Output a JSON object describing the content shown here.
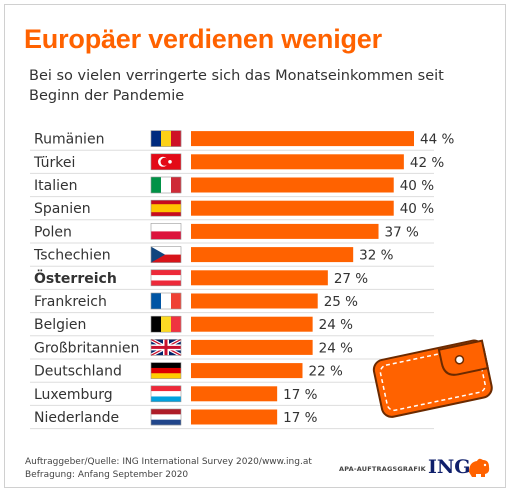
{
  "title": "Europäer verdienen weniger",
  "subtitle": "Bei so vielen verringerte sich das Monatseinkommen seit Beginn der Pandemie",
  "source": "Auftraggeber/Quelle: ING International Survey 2020/www.ing.at",
  "survey": "Befragung: Anfang September 2020",
  "credit": "APA-AUFTRAGSGRAFIK",
  "logo": "ING",
  "colors": {
    "accent": "#ff6200",
    "bar": "#ff6200",
    "text": "#333333",
    "rule": "#dddddd",
    "logo": "#0f1f6b"
  },
  "icons": [
    "flag-icon",
    "wallet-icon",
    "lion-icon"
  ],
  "chart_data": {
    "type": "bar",
    "orientation": "horizontal",
    "unit": "%",
    "categories": [
      "Rumänien",
      "Türkei",
      "Italien",
      "Spanien",
      "Polen",
      "Tschechien",
      "Österreich",
      "Frankreich",
      "Belgien",
      "Großbritannien",
      "Deutschland",
      "Luxemburg",
      "Niederlande"
    ],
    "values": [
      44,
      42,
      40,
      40,
      37,
      32,
      27,
      25,
      24,
      24,
      22,
      17,
      17
    ],
    "labels": [
      "44 %",
      "42 %",
      "40 %",
      "40 %",
      "37 %",
      "32 %",
      "27 %",
      "25 %",
      "24 %",
      "24 %",
      "22 %",
      "17 %",
      "17 %"
    ],
    "highlight": "Österreich",
    "xlim": [
      0,
      44
    ],
    "grid": false,
    "legend": "none"
  }
}
